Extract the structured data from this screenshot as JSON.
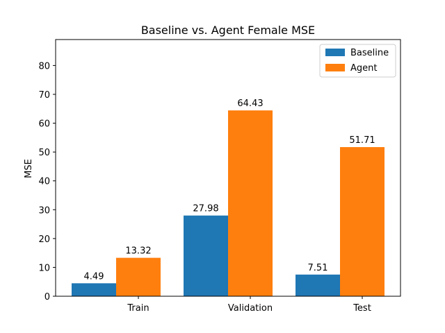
{
  "chart_data": {
    "type": "bar",
    "title": "Baseline vs. Agent Female MSE",
    "xlabel": "",
    "ylabel": "MSE",
    "categories": [
      "Train",
      "Validation",
      "Test"
    ],
    "series": [
      {
        "name": "Baseline",
        "values": [
          4.49,
          27.98,
          7.51
        ],
        "labels": [
          "4.49",
          "27.98",
          "7.51"
        ],
        "color": "#1f77b4"
      },
      {
        "name": "Agent",
        "values": [
          13.32,
          64.43,
          51.71
        ],
        "labels": [
          "13.32",
          "64.43",
          "51.71"
        ],
        "color": "#ff7f0e"
      }
    ],
    "ylim": [
      0,
      89
    ],
    "yticks": [
      0,
      10,
      20,
      30,
      40,
      50,
      60,
      70,
      80
    ],
    "grid": false,
    "legend": "top-right"
  }
}
